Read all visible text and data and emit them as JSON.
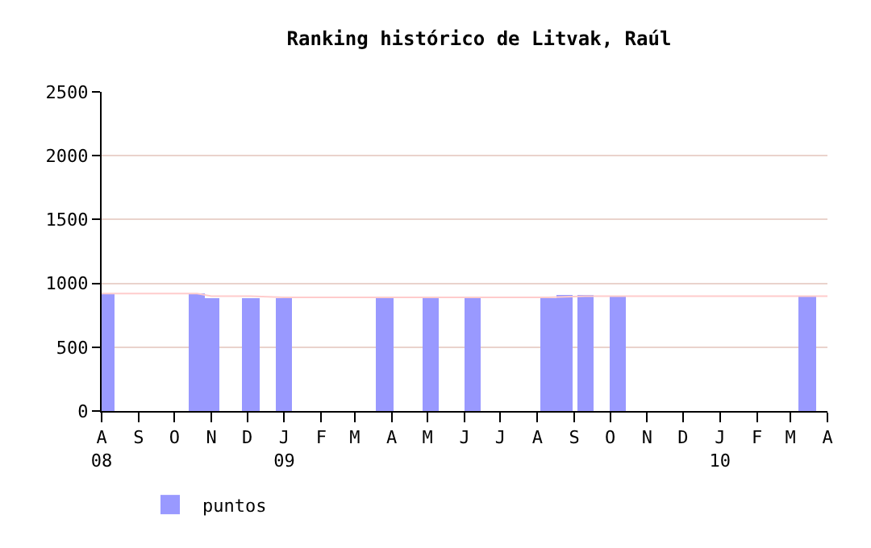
{
  "chart_data": {
    "type": "bar",
    "title": "Ranking histórico de Litvak, Raúl",
    "x": [
      "2008-08-05",
      "2008-10-20",
      "2008-10-31",
      "2008-12-04",
      "2009-01-01",
      "2009-03-26",
      "2009-05-04",
      "2009-06-08",
      "2009-08-10",
      "2009-08-24",
      "2009-09-10",
      "2009-10-07",
      "2010-03-15"
    ],
    "series": [
      {
        "name": "puntos",
        "color": "#9999ff",
        "values": [
          920,
          920,
          890,
          890,
          890,
          900,
          900,
          900,
          890,
          910,
          910,
          900,
          900
        ]
      },
      {
        "type": "line",
        "color": "#ffcccc",
        "x": [
          "2008-08-01",
          "2008-10-20",
          "2008-11-01",
          "2008-12-04",
          "2009-01-01",
          "2009-08-10",
          "2009-09-10",
          "2010-04-01"
        ],
        "values": [
          920,
          920,
          900,
          900,
          890,
          890,
          900,
          900
        ]
      }
    ],
    "xlim": [
      "2008-08-01",
      "2010-04-01"
    ],
    "xticks": [
      {
        "value": "2008-08-01",
        "label": "A\n08"
      },
      {
        "value": "2008-09-01",
        "label": "S"
      },
      {
        "value": "2008-10-01",
        "label": "O"
      },
      {
        "value": "2008-11-01",
        "label": "N"
      },
      {
        "value": "2008-12-01",
        "label": "D"
      },
      {
        "value": "2009-01-01",
        "label": "J\n09"
      },
      {
        "value": "2009-02-01",
        "label": "F"
      },
      {
        "value": "2009-03-01",
        "label": "M"
      },
      {
        "value": "2009-04-01",
        "label": "A"
      },
      {
        "value": "2009-05-01",
        "label": "M"
      },
      {
        "value": "2009-06-01",
        "label": "J"
      },
      {
        "value": "2009-07-01",
        "label": "J"
      },
      {
        "value": "2009-08-01",
        "label": "A"
      },
      {
        "value": "2009-09-01",
        "label": "S"
      },
      {
        "value": "2009-10-01",
        "label": "O"
      },
      {
        "value": "2009-11-01",
        "label": "N"
      },
      {
        "value": "2009-12-01",
        "label": "D"
      },
      {
        "value": "2010-01-01",
        "label": "J\n10"
      },
      {
        "value": "2010-02-01",
        "label": "F"
      },
      {
        "value": "2010-03-01",
        "label": "M"
      },
      {
        "value": "2010-04-01",
        "label": "A"
      }
    ],
    "ylim": [
      0,
      2500
    ],
    "yticks": [
      0,
      500,
      1000,
      1500,
      2000,
      2500
    ],
    "grid": "y",
    "legend": "bottom left"
  }
}
